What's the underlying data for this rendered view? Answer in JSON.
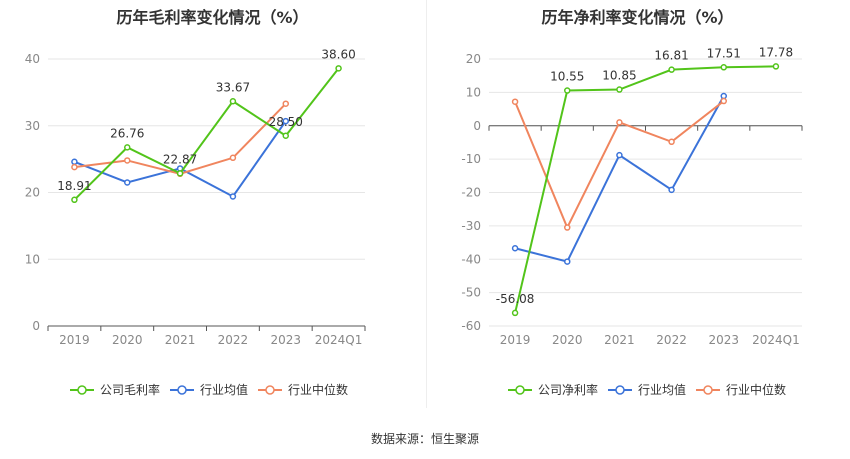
{
  "chart_data": [
    {
      "type": "line",
      "title": "历年毛利率变化情况（%）",
      "categories": [
        "2019",
        "2020",
        "2021",
        "2022",
        "2023",
        "2024Q1"
      ],
      "ylim": [
        0,
        40
      ],
      "yticks": [
        0,
        10,
        20,
        30,
        40
      ],
      "grid": true,
      "legend_position": "bottom",
      "series": [
        {
          "name": "公司毛利率",
          "color": "#52c41a",
          "values": [
            18.91,
            26.76,
            22.87,
            33.67,
            28.5,
            38.6
          ],
          "labels": [
            "18.91",
            "26.76",
            "22.87",
            "33.67",
            "28.50",
            "38.60"
          ]
        },
        {
          "name": "行业均值",
          "color": "#3b73d9",
          "values": [
            24.6,
            21.5,
            23.6,
            19.4,
            30.7,
            null
          ]
        },
        {
          "name": "行业中位数",
          "color": "#f0855e",
          "values": [
            23.8,
            24.8,
            22.8,
            25.2,
            33.3,
            null
          ]
        }
      ]
    },
    {
      "type": "line",
      "title": "历年净利率变化情况（%）",
      "categories": [
        "2019",
        "2020",
        "2021",
        "2022",
        "2023",
        "2024Q1"
      ],
      "ylim": [
        -60,
        20
      ],
      "yticks": [
        -60,
        -50,
        -40,
        -30,
        -20,
        -10,
        0,
        10,
        20
      ],
      "grid": true,
      "legend_position": "bottom",
      "series": [
        {
          "name": "公司净利率",
          "color": "#52c41a",
          "values": [
            -56.08,
            10.55,
            10.85,
            16.81,
            17.51,
            17.78
          ],
          "labels": [
            "-56.08",
            "10.55",
            "10.85",
            "16.81",
            "17.51",
            "17.78"
          ]
        },
        {
          "name": "行业均值",
          "color": "#3b73d9",
          "values": [
            -36.7,
            -40.7,
            -8.8,
            -19.2,
            8.9,
            null
          ]
        },
        {
          "name": "行业中位数",
          "color": "#f0855e",
          "values": [
            7.2,
            -30.5,
            1.0,
            -4.8,
            7.4,
            null
          ]
        }
      ]
    }
  ],
  "footer": {
    "source": "数据来源：恒生聚源"
  }
}
